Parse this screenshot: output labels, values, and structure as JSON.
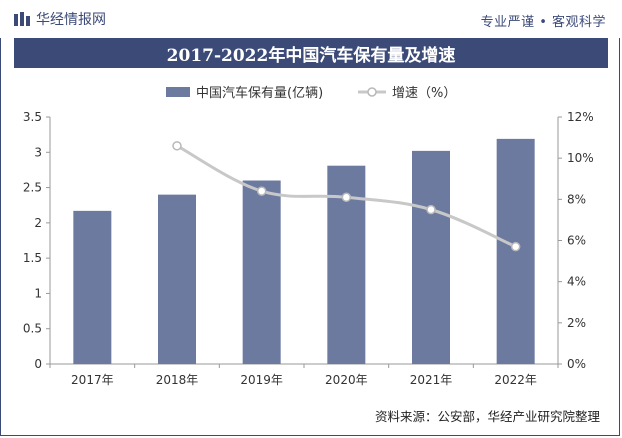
{
  "header": {
    "brand_name": "华经情报网",
    "slogan": "专业严谨 • 客观科学",
    "brand_icon": "bar-logo-icon"
  },
  "colors": {
    "bar": "#6c7aa0",
    "line": "#c8c8c8",
    "marker_fill": "#ffffff",
    "marker_stroke": "#b8b8b8",
    "title_bg": "#3c4a78",
    "axis": "#999999"
  },
  "chart_data": {
    "type": "bar",
    "title": "2017-2022年中国汽车保有量及增速",
    "categories": [
      "2017年",
      "2018年",
      "2019年",
      "2020年",
      "2021年",
      "2022年"
    ],
    "series": [
      {
        "name": "中国汽车保有量(亿辆)",
        "type": "bar",
        "axis": "left",
        "values": [
          2.17,
          2.4,
          2.6,
          2.81,
          3.02,
          3.19
        ]
      },
      {
        "name": "增速（%）",
        "type": "line",
        "axis": "right",
        "values": [
          null,
          10.6,
          8.4,
          8.1,
          7.5,
          5.7
        ]
      }
    ],
    "y_left": {
      "min": 0,
      "max": 3.5,
      "ticks": [
        "0",
        "0.5",
        "1",
        "1.5",
        "2",
        "2.5",
        "3",
        "3.5"
      ]
    },
    "y_right": {
      "min": 0,
      "max": 12,
      "ticks": [
        "0%",
        "2%",
        "4%",
        "6%",
        "8%",
        "10%",
        "12%"
      ]
    },
    "legend_position": "top-center",
    "grid": false
  },
  "footer": {
    "source": "资料来源：公安部，华经产业研究院整理"
  }
}
